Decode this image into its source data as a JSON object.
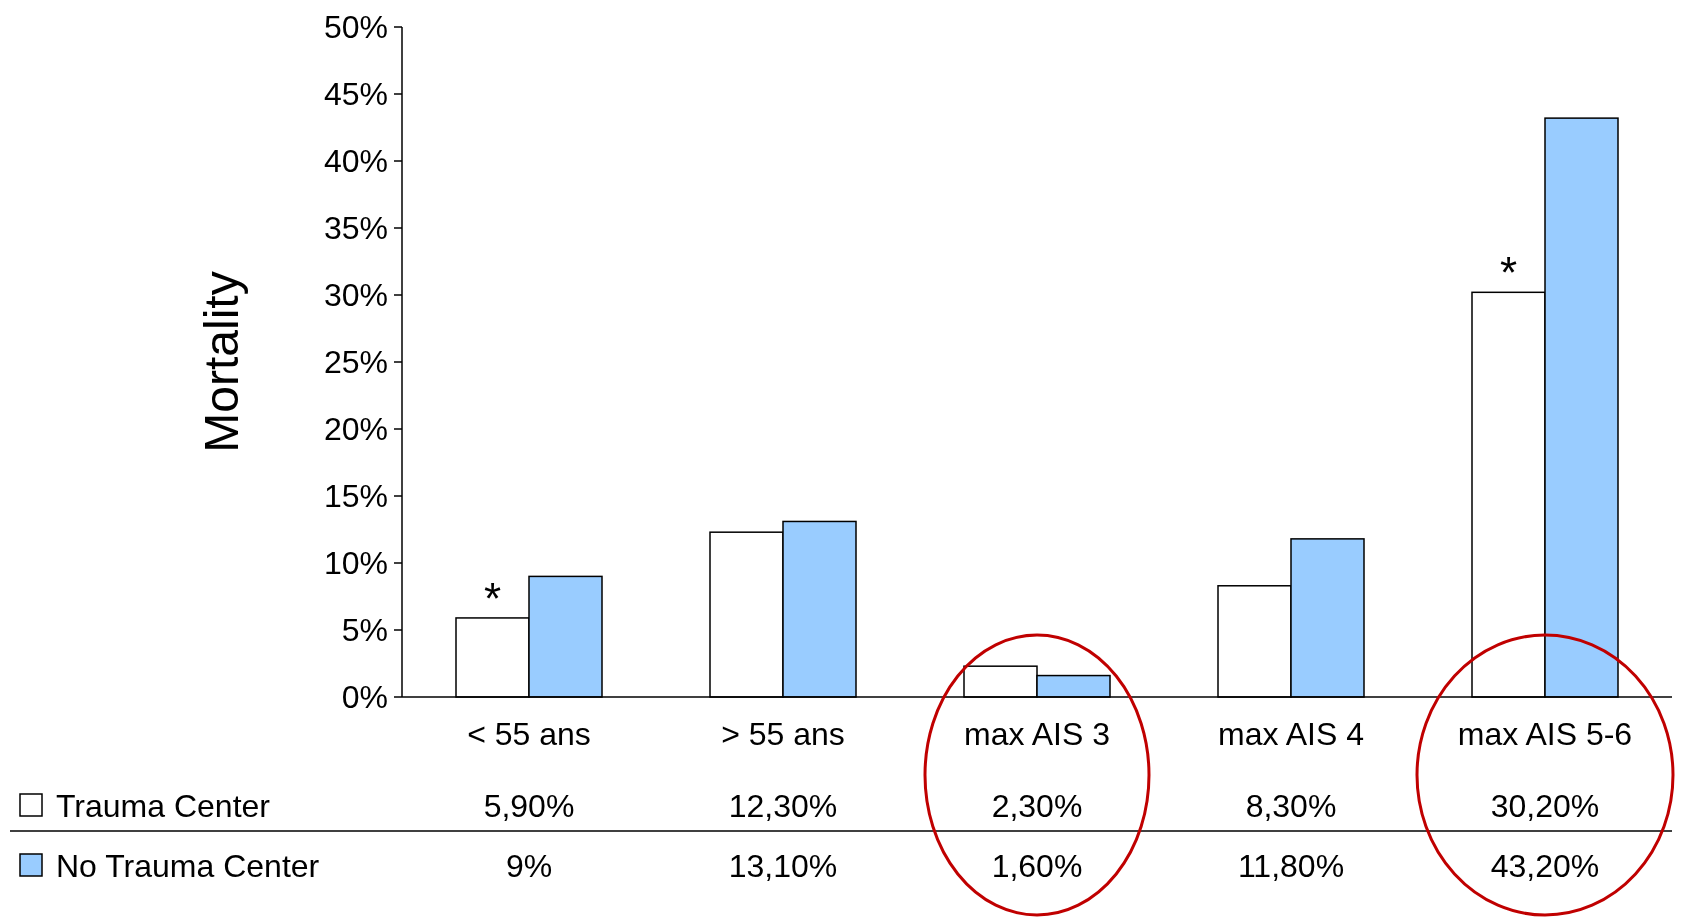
{
  "chart_data": {
    "type": "bar",
    "ylabel": "Mortality",
    "categories": [
      "< 55 ans",
      "> 55 ans",
      "max AIS 3",
      "max AIS 4",
      "max AIS 5-6"
    ],
    "series": [
      {
        "name": "Trauma Center",
        "color": "#ffffff",
        "values": [
          5.9,
          12.3,
          2.3,
          8.3,
          30.2
        ],
        "value_labels": [
          "5,90%",
          "12,30%",
          "2,30%",
          "8,30%",
          "30,20%"
        ]
      },
      {
        "name": "No Trauma Center",
        "color": "#99ccff",
        "values": [
          9,
          13.1,
          1.6,
          11.8,
          43.2
        ],
        "value_labels": [
          "9%",
          "13,10%",
          "1,60%",
          "11,80%",
          "43,20%"
        ]
      }
    ],
    "ylim": [
      0,
      50
    ],
    "yticks": [
      {
        "value": 0,
        "label": "0%"
      },
      {
        "value": 5,
        "label": "5%"
      },
      {
        "value": 10,
        "label": "10%"
      },
      {
        "value": 15,
        "label": "15%"
      },
      {
        "value": 20,
        "label": "20%"
      },
      {
        "value": 25,
        "label": "25%"
      },
      {
        "value": 30,
        "label": "30%"
      },
      {
        "value": 35,
        "label": "35%"
      },
      {
        "value": 40,
        "label": "40%"
      },
      {
        "value": 45,
        "label": "45%"
      },
      {
        "value": 50,
        "label": "50%"
      }
    ],
    "annotations": [
      {
        "text": "*",
        "x": "< 55 ans",
        "y": 5.9
      },
      {
        "text": "*",
        "x": "max AIS 5-6",
        "y": 30.2
      }
    ],
    "legend": "bottom",
    "grid": false
  }
}
